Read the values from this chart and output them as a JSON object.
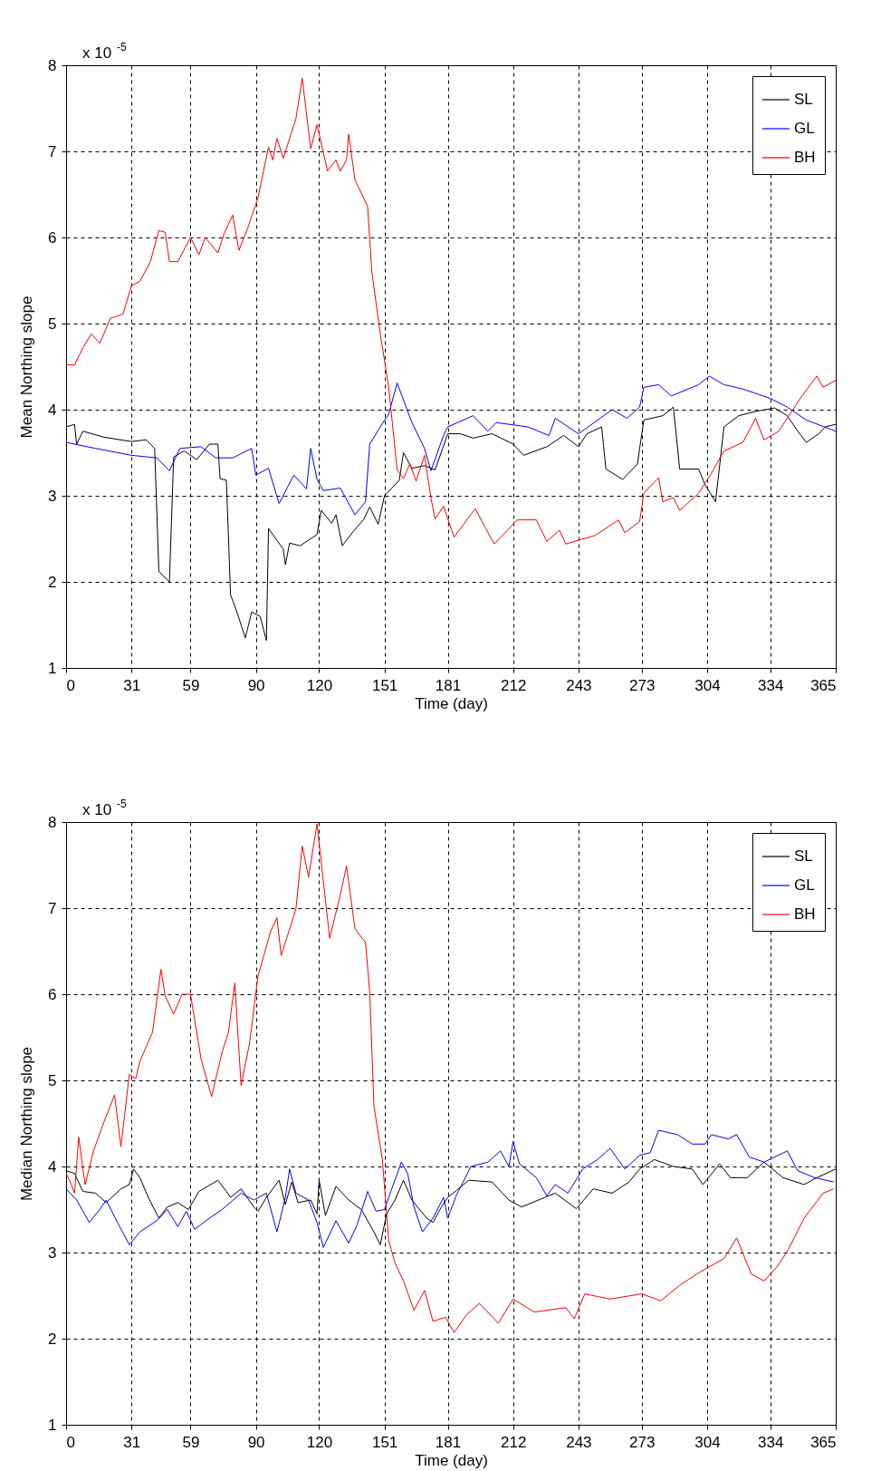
{
  "chart_data": [
    {
      "type": "line",
      "xlabel": "Time (day)",
      "ylabel": "Mean Northing slope",
      "annotations": [
        "x 10$^{-5}$"
      ],
      "xlim": [
        0,
        365
      ],
      "xticks": [
        0,
        31,
        59,
        90,
        120,
        151,
        181,
        212,
        243,
        273,
        304,
        334,
        365
      ],
      "ylim": [
        1,
        8
      ],
      "yticks": [
        1,
        2,
        3,
        4,
        5,
        6,
        7,
        8
      ],
      "grid": true,
      "legend": "top right",
      "series": [
        {
          "name": "SL",
          "color": "#000000",
          "x": [
            0,
            4,
            5,
            8,
            18,
            31,
            38,
            42,
            44,
            49,
            51,
            56,
            62,
            68,
            72,
            73,
            76,
            78,
            81,
            85,
            88,
            92,
            95,
            96,
            103,
            104,
            106,
            111,
            119,
            121,
            126,
            128,
            131,
            136,
            141,
            144,
            148,
            151,
            158,
            160,
            164,
            170,
            175,
            181,
            187,
            193,
            202,
            212,
            217,
            228,
            236,
            243,
            247,
            254,
            256,
            264,
            271,
            272,
            274,
            283,
            288,
            291,
            300,
            303,
            308,
            312,
            319,
            327,
            336,
            342,
            347,
            351,
            357,
            360,
            365
          ],
          "values": [
            3.8,
            3.83,
            3.6,
            3.75,
            3.68,
            3.63,
            3.65,
            3.55,
            2.12,
            2.0,
            3.45,
            3.52,
            3.42,
            3.6,
            3.6,
            3.2,
            3.18,
            1.85,
            1.65,
            1.35,
            1.65,
            1.6,
            1.32,
            2.62,
            2.38,
            2.2,
            2.45,
            2.42,
            2.55,
            2.83,
            2.68,
            2.78,
            2.42,
            2.58,
            2.72,
            2.87,
            2.67,
            3.0,
            3.18,
            3.5,
            3.32,
            3.35,
            3.3,
            3.72,
            3.72,
            3.67,
            3.72,
            3.6,
            3.47,
            3.57,
            3.7,
            3.57,
            3.72,
            3.8,
            3.31,
            3.19,
            3.37,
            3.55,
            3.88,
            3.93,
            4.03,
            3.31,
            3.31,
            3.13,
            2.93,
            3.8,
            3.93,
            3.98,
            4.02,
            3.93,
            3.75,
            3.62,
            3.72,
            3.8,
            3.83
          ]
        },
        {
          "name": "GL",
          "color": "#0000ff",
          "x": [
            0,
            14,
            31,
            43,
            49,
            54,
            64,
            71,
            79,
            88,
            90,
            96,
            101,
            108,
            114,
            116,
            119,
            122,
            130,
            137,
            142,
            144,
            149,
            153,
            157,
            164,
            170,
            173,
            179,
            181,
            193,
            200,
            204,
            219,
            229,
            232,
            243,
            259,
            266,
            272,
            274,
            281,
            287,
            300,
            305,
            312,
            321,
            334,
            342,
            351,
            365
          ],
          "values": [
            3.62,
            3.55,
            3.47,
            3.44,
            3.29,
            3.55,
            3.57,
            3.44,
            3.44,
            3.55,
            3.24,
            3.32,
            2.91,
            3.24,
            3.08,
            3.55,
            3.19,
            3.06,
            3.09,
            2.78,
            2.93,
            3.6,
            3.8,
            3.95,
            4.31,
            3.85,
            3.55,
            3.29,
            3.7,
            3.8,
            3.93,
            3.75,
            3.85,
            3.8,
            3.7,
            3.9,
            3.72,
            4.0,
            3.9,
            4.03,
            4.26,
            4.29,
            4.16,
            4.29,
            4.39,
            4.29,
            4.24,
            4.13,
            4.03,
            3.88,
            3.75
          ]
        },
        {
          "name": "BH",
          "color": "#ff0000",
          "x": [
            0,
            4,
            8,
            12,
            16,
            21,
            27,
            31,
            35,
            40,
            44,
            47,
            49,
            53,
            59,
            63,
            66,
            72,
            75,
            79,
            82,
            86,
            91,
            96,
            98,
            100,
            103,
            109,
            112,
            116,
            119,
            124,
            128,
            130,
            133,
            134,
            137,
            143,
            145,
            149,
            153,
            157,
            160,
            163,
            166,
            170,
            173,
            175,
            179,
            184,
            194,
            203,
            214,
            223,
            228,
            234,
            237,
            251,
            262,
            265,
            272,
            274,
            281,
            283,
            288,
            291,
            300,
            306,
            312,
            321,
            327,
            331,
            338,
            342,
            349,
            356,
            359,
            365
          ],
          "values": [
            4.52,
            4.52,
            4.72,
            4.88,
            4.77,
            5.06,
            5.11,
            5.44,
            5.49,
            5.72,
            6.08,
            6.06,
            5.72,
            5.72,
            6.0,
            5.8,
            6.0,
            5.82,
            6.05,
            6.26,
            5.85,
            6.1,
            6.46,
            7.05,
            6.9,
            7.15,
            6.92,
            7.38,
            7.85,
            7.03,
            7.31,
            6.77,
            6.9,
            6.77,
            6.9,
            7.2,
            6.67,
            6.36,
            5.6,
            4.88,
            4.26,
            3.3,
            3.2,
            3.37,
            3.17,
            3.47,
            2.98,
            2.73,
            2.88,
            2.52,
            2.85,
            2.44,
            2.72,
            2.72,
            2.47,
            2.6,
            2.44,
            2.54,
            2.72,
            2.57,
            2.7,
            3.03,
            3.21,
            2.93,
            2.98,
            2.83,
            3.03,
            3.26,
            3.52,
            3.62,
            3.9,
            3.65,
            3.75,
            3.9,
            4.16,
            4.39,
            4.26,
            4.34
          ]
        }
      ]
    },
    {
      "type": "line",
      "xlabel": "Time (day)",
      "ylabel": "Median Northing slope",
      "annotations": [
        "x 10$^{-5}$"
      ],
      "xlim": [
        0,
        365
      ],
      "xticks": [
        0,
        31,
        59,
        90,
        120,
        151,
        181,
        212,
        243,
        273,
        304,
        334,
        365
      ],
      "ylim": [
        1,
        8
      ],
      "yticks": [
        1,
        2,
        3,
        4,
        5,
        6,
        7,
        8
      ],
      "grid": true,
      "legend": "top right",
      "series": [
        {
          "name": "SL",
          "color": "#000000",
          "x": [
            0,
            4,
            8,
            14,
            19,
            26,
            30,
            32,
            35,
            39,
            44,
            48,
            53,
            58,
            63,
            72,
            76,
            78,
            83,
            89,
            91,
            95,
            101,
            104,
            107,
            110,
            116,
            119,
            120,
            123,
            128,
            134,
            140,
            146,
            149,
            152,
            156,
            160,
            164,
            171,
            174,
            178,
            181,
            191,
            202,
            210,
            216,
            224,
            232,
            242,
            250,
            259,
            267,
            272,
            279,
            288,
            297,
            302,
            310,
            315,
            323,
            331,
            340,
            350,
            356,
            365
          ],
          "values": [
            3.95,
            3.92,
            3.71,
            3.69,
            3.58,
            3.74,
            3.79,
            3.97,
            3.87,
            3.64,
            3.4,
            3.53,
            3.58,
            3.5,
            3.71,
            3.84,
            3.71,
            3.64,
            3.74,
            3.53,
            3.48,
            3.64,
            3.84,
            3.56,
            3.82,
            3.58,
            3.61,
            3.45,
            3.84,
            3.43,
            3.77,
            3.61,
            3.5,
            3.24,
            3.09,
            3.45,
            3.61,
            3.84,
            3.61,
            3.4,
            3.35,
            3.53,
            3.64,
            3.84,
            3.82,
            3.61,
            3.53,
            3.61,
            3.69,
            3.51,
            3.74,
            3.69,
            3.82,
            3.97,
            4.08,
            4.0,
            3.97,
            3.79,
            4.03,
            3.87,
            3.87,
            4.05,
            3.87,
            3.79,
            3.87,
            3.97
          ]
        },
        {
          "name": "GL",
          "color": "#0000ff",
          "x": [
            0,
            5,
            11,
            16,
            19,
            25,
            30,
            35,
            43,
            48,
            53,
            57,
            61,
            68,
            74,
            83,
            89,
            95,
            100,
            104,
            106,
            109,
            115,
            119,
            122,
            128,
            134,
            138,
            143,
            147,
            151,
            154,
            159,
            162,
            165,
            169,
            174,
            179,
            181,
            185,
            192,
            200,
            206,
            210,
            212,
            215,
            223,
            228,
            232,
            238,
            245,
            252,
            258,
            265,
            272,
            277,
            281,
            290,
            297,
            303,
            306,
            314,
            318,
            324,
            331,
            342,
            347,
            355,
            364
          ],
          "values": [
            3.74,
            3.61,
            3.35,
            3.5,
            3.61,
            3.32,
            3.09,
            3.24,
            3.37,
            3.5,
            3.3,
            3.48,
            3.27,
            3.4,
            3.5,
            3.69,
            3.61,
            3.69,
            3.24,
            3.64,
            3.97,
            3.69,
            3.61,
            3.35,
            3.06,
            3.37,
            3.11,
            3.32,
            3.71,
            3.48,
            3.5,
            3.71,
            4.05,
            3.92,
            3.53,
            3.24,
            3.4,
            3.64,
            3.4,
            3.66,
            4.0,
            4.05,
            4.18,
            4.0,
            4.29,
            4.03,
            3.87,
            3.66,
            3.79,
            3.69,
            3.97,
            4.08,
            4.21,
            3.97,
            4.13,
            4.16,
            4.42,
            4.37,
            4.26,
            4.26,
            4.37,
            4.32,
            4.37,
            4.11,
            4.05,
            4.18,
            3.95,
            3.87,
            3.82
          ]
        },
        {
          "name": "BH",
          "color": "#ff0000",
          "x": [
            0,
            2,
            4,
            6,
            9,
            13,
            18,
            23,
            26,
            30,
            33,
            35,
            41,
            45,
            47,
            51,
            55,
            59,
            64,
            69,
            74,
            77,
            80,
            83,
            87,
            91,
            97,
            100,
            102,
            109,
            112,
            115,
            119,
            125,
            130,
            133,
            137,
            142,
            144,
            146,
            150,
            153,
            156,
            160,
            165,
            170,
            174,
            180,
            184,
            190,
            196,
            205,
            212,
            222,
            237,
            241,
            246,
            258,
            273,
            282,
            291,
            301,
            312,
            318,
            325,
            331,
            337,
            342,
            350,
            359,
            364
          ],
          "values": [
            3.92,
            3.82,
            3.69,
            4.34,
            3.79,
            4.18,
            4.52,
            4.83,
            4.23,
            5.07,
            5.02,
            5.22,
            5.56,
            6.29,
            5.98,
            5.77,
            6.0,
            6.0,
            5.25,
            4.81,
            5.33,
            5.56,
            6.13,
            4.94,
            5.43,
            6.21,
            6.73,
            6.89,
            6.45,
            6.99,
            7.72,
            7.36,
            7.98,
            6.65,
            7.15,
            7.49,
            6.76,
            6.6,
            6.03,
            4.7,
            4.08,
            3.14,
            2.88,
            2.67,
            2.33,
            2.56,
            2.2,
            2.25,
            2.07,
            2.28,
            2.41,
            2.18,
            2.46,
            2.31,
            2.36,
            2.23,
            2.52,
            2.46,
            2.52,
            2.44,
            2.62,
            2.78,
            2.93,
            3.17,
            2.75,
            2.67,
            2.83,
            3.01,
            3.4,
            3.69,
            3.74
          ]
        }
      ]
    }
  ]
}
